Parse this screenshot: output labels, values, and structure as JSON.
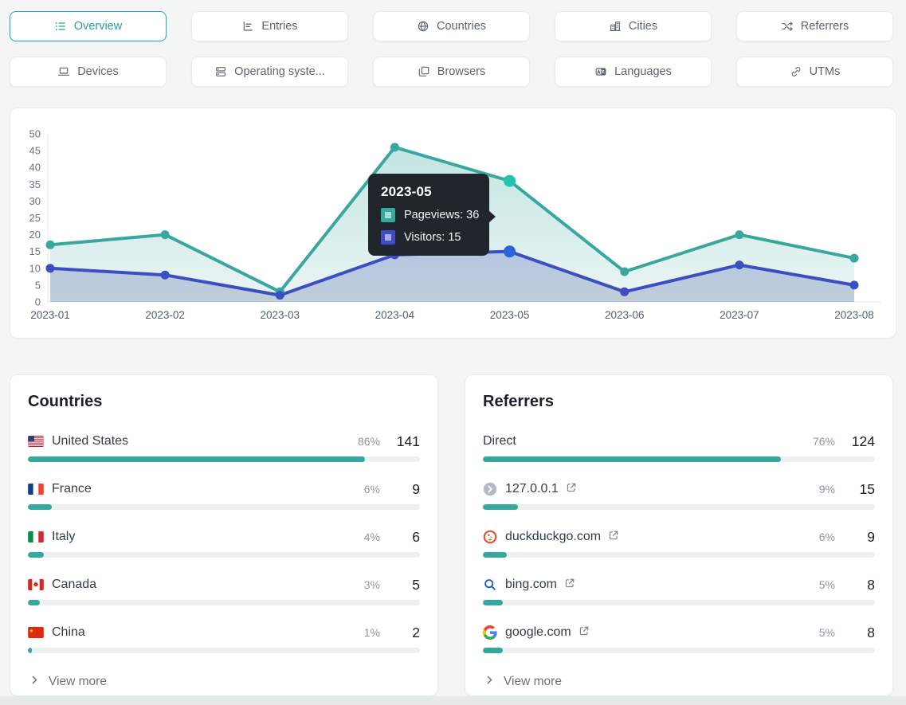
{
  "tabs": {
    "rows": [
      [
        {
          "label": "Overview",
          "icon": "list-icon",
          "active": true
        },
        {
          "label": "Entries",
          "icon": "bar-chart-icon",
          "active": false
        },
        {
          "label": "Countries",
          "icon": "globe-icon",
          "active": false
        },
        {
          "label": "Cities",
          "icon": "buildings-icon",
          "active": false
        },
        {
          "label": "Referrers",
          "icon": "shuffle-icon",
          "active": false
        }
      ],
      [
        {
          "label": "Devices",
          "icon": "laptop-icon",
          "active": false
        },
        {
          "label": "Operating syste...",
          "icon": "server-stack-icon",
          "active": false
        },
        {
          "label": "Browsers",
          "icon": "windows-icon",
          "active": false
        },
        {
          "label": "Languages",
          "icon": "translate-icon",
          "active": false
        },
        {
          "label": "UTMs",
          "icon": "link-icon",
          "active": false
        }
      ]
    ]
  },
  "chart_data": {
    "type": "line",
    "x": [
      "2023-01",
      "2023-02",
      "2023-03",
      "2023-04",
      "2023-05",
      "2023-06",
      "2023-07",
      "2023-08"
    ],
    "ylim": [
      0,
      50
    ],
    "yticks": [
      0,
      5,
      10,
      15,
      20,
      25,
      30,
      35,
      40,
      45,
      50
    ],
    "grid": false,
    "legend_position": "tooltip-only",
    "series": [
      {
        "name": "Pageviews",
        "values": [
          17,
          20,
          3,
          46,
          36,
          9,
          20,
          13
        ],
        "color": "#38a89e",
        "highlight": "#22c3b1",
        "marker_inner": "#a7dbd5",
        "fill_top": "rgba(56,168,158,0.30)",
        "fill_bottom": "rgba(56,168,158,0.10)"
      },
      {
        "name": "Visitors",
        "values": [
          10,
          8,
          2,
          14,
          15,
          3,
          11,
          5
        ],
        "color": "#3c4ec1",
        "highlight": "#2b63d9",
        "marker_inner": "#a9abe3",
        "fill_top": "rgba(93,115,196,0.32)",
        "fill_bottom": "rgba(121,140,173,0.38)"
      }
    ],
    "tooltip": {
      "point_index": 4,
      "title": "2023-05",
      "items": [
        {
          "label": "Pageviews",
          "value": "36"
        },
        {
          "label": "Visitors",
          "value": "15"
        }
      ]
    }
  },
  "panels": [
    {
      "title": "Countries",
      "view_more_label": "View more",
      "rows": [
        {
          "label": "United States",
          "icon": "flag-us",
          "external": false,
          "percent": "86%",
          "count": "141",
          "bar": 86
        },
        {
          "label": "France",
          "icon": "flag-fr",
          "external": false,
          "percent": "6%",
          "count": "9",
          "bar": 6
        },
        {
          "label": "Italy",
          "icon": "flag-it",
          "external": false,
          "percent": "4%",
          "count": "6",
          "bar": 4
        },
        {
          "label": "Canada",
          "icon": "flag-ca",
          "external": false,
          "percent": "3%",
          "count": "5",
          "bar": 3
        },
        {
          "label": "China",
          "icon": "flag-cn",
          "external": false,
          "percent": "1%",
          "count": "2",
          "bar": 1
        }
      ]
    },
    {
      "title": "Referrers",
      "view_more_label": "View more",
      "rows": [
        {
          "label": "Direct",
          "icon": null,
          "external": false,
          "percent": "76%",
          "count": "124",
          "bar": 76
        },
        {
          "label": "127.0.0.1",
          "icon": "chevron-circle-icon",
          "external": true,
          "percent": "9%",
          "count": "15",
          "bar": 9
        },
        {
          "label": "duckduckgo.com",
          "icon": "duckduckgo-icon",
          "external": true,
          "percent": "6%",
          "count": "9",
          "bar": 6
        },
        {
          "label": "bing.com",
          "icon": "bing-icon",
          "external": true,
          "percent": "5%",
          "count": "8",
          "bar": 5
        },
        {
          "label": "google.com",
          "icon": "google-icon",
          "external": true,
          "percent": "5%",
          "count": "8",
          "bar": 5
        }
      ]
    }
  ],
  "colors": {
    "accent": "#2ba89c",
    "page_bg": "#f3f6f5",
    "card_bg": "#ffffff",
    "tooltip_bg": "#21262d",
    "bar_track": "#edeff0",
    "bar_fill": "#35a89d",
    "text_dark": "#1f2937",
    "text_gray": "#64748b"
  }
}
